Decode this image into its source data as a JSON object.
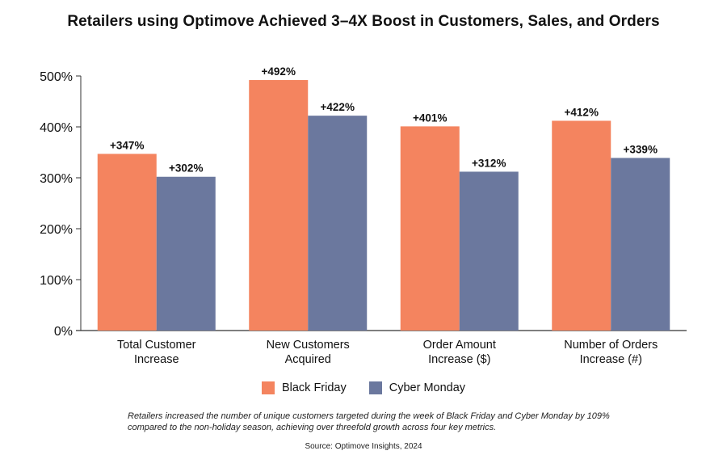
{
  "chart_data": {
    "type": "bar",
    "title": "Retailers using Optimove Achieved 3–4X Boost in Customers, Sales, and Orders",
    "categories": [
      [
        "Total Customer",
        "Increase"
      ],
      [
        "New Customers",
        "Acquired"
      ],
      [
        "Order Amount",
        "Increase ($)"
      ],
      [
        "Number of Orders",
        "Increase (#)"
      ]
    ],
    "series": [
      {
        "name": "Black Friday",
        "color": "#f4845f",
        "values": [
          347,
          492,
          401,
          412
        ],
        "labels": [
          "+347%",
          "+492%",
          "+401%",
          "+412%"
        ]
      },
      {
        "name": "Cyber Monday",
        "color": "#6b789e",
        "values": [
          302,
          422,
          312,
          339
        ],
        "labels": [
          "+302%",
          "+422%",
          "+312%",
          "+339%"
        ]
      }
    ],
    "ylim": [
      0,
      500
    ],
    "yticks": [
      0,
      100,
      200,
      300,
      400,
      500
    ],
    "ytick_labels": [
      "0%",
      "100%",
      "200%",
      "300%",
      "400%",
      "500%"
    ],
    "legend_position": "bottom-center",
    "grid": false,
    "note": "Retailers increased the number of unique customers targeted during the week of Black Friday and Cyber Monday by 109% compared to the non-holiday season, achieving over threefold growth across four key metrics.",
    "source": "Source: Optimove Insights, 2024"
  }
}
